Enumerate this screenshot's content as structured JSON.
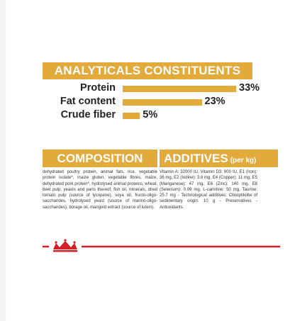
{
  "analytics": {
    "title": "ANALYTICALS CONSTITUENTS",
    "rows": [
      {
        "label": "Protein",
        "value": 33,
        "value_label": "33%"
      },
      {
        "label": "Fat content",
        "value": 23,
        "value_label": "23%"
      },
      {
        "label": "Crude fiber",
        "value": 5,
        "value_label": "5%"
      }
    ]
  },
  "composition": {
    "title": "COMPOSITION",
    "text": "dehydrated poultry protein, animal fats, rice, vegetable protein isolate*, maize gluten, vegetable fibres, maize, dehydrated pork protein*, hydrolysed animal proteins, wheat, beet pulp, yeasts and parts thereof, fish oil, minerals, dried tomato pulp (source of lycopene), soya oil, fructo-oligo-saccharides, hydrolysed yeast (source of manno-oligo-saccharides), borage oil, marigold extract (source of lutein)."
  },
  "additives": {
    "title": "ADDITIVES",
    "unit": "(per kg)",
    "text": "Vitamin A: 32000 IU, Vitamin D3: 900 IU, E1 (Iron): 36 mg, E2 (Iodine): 3.6 mg, E4 (Copper): 11 mg, E5 (Manganese): 47 mg, E6 (Zinc): 140 mg, E8 (Selenium): 0.09 mg, L-carnitine: 50 mg, Taurine: 25.7 mg - Technological additives: Clinoptilolite of sedimentary origin: 10 g - Preservatives - Antioxidants."
  }
}
